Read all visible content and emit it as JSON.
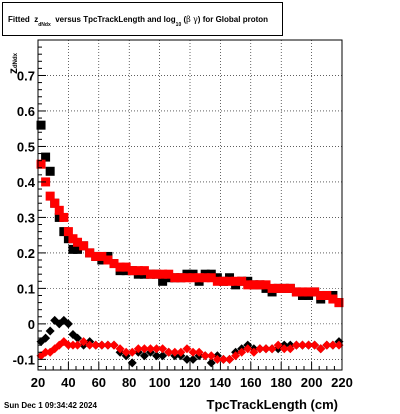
{
  "title": {
    "prefix": "Fitted",
    "z": "z",
    "z_sub": "dNdx",
    "middle": "versus TpcTrackLength and log",
    "log_sub": "10",
    "open": "(",
    "beta": "β",
    "gamma": "γ",
    "close": ")",
    "suffix": "for Global proton"
  },
  "footer": "Sun Dec  1 09:34:42 2024",
  "chart_data": {
    "type": "scatter",
    "title": "Fitted z_dNdx versus TpcTrackLength and log10(βγ) for Global proton",
    "xlabel": "TpcTrackLength (cm)",
    "ylabel": "z_dNdx",
    "xlim": [
      20,
      220
    ],
    "ylim": [
      -0.13,
      0.8
    ],
    "xticks": [
      20,
      40,
      60,
      80,
      100,
      120,
      140,
      160,
      180,
      200,
      220
    ],
    "yticks": [
      -0.1,
      0,
      0.1,
      0.2,
      0.3,
      0.4,
      0.5,
      0.6,
      0.7
    ],
    "grid": true,
    "series": [
      {
        "marker": "square",
        "color": "#000000",
        "x": [
          22,
          25,
          28,
          31,
          34,
          37,
          40,
          43,
          46,
          50,
          54,
          58,
          62,
          66,
          70,
          74,
          78,
          82,
          86,
          90,
          94,
          98,
          102,
          106,
          110,
          114,
          118,
          122,
          126,
          130,
          134,
          138,
          142,
          146,
          150,
          154,
          158,
          162,
          166,
          170,
          174,
          178,
          182,
          186,
          190,
          194,
          198,
          202,
          206,
          210,
          214,
          218
        ],
        "y": [
          0.56,
          0.47,
          0.43,
          0.34,
          0.3,
          0.26,
          0.24,
          0.21,
          0.21,
          0.22,
          0.2,
          0.19,
          0.18,
          0.19,
          0.17,
          0.15,
          0.15,
          0.15,
          0.14,
          0.14,
          0.14,
          0.14,
          0.12,
          0.13,
          0.13,
          0.13,
          0.14,
          0.14,
          0.12,
          0.14,
          0.14,
          0.13,
          0.12,
          0.13,
          0.11,
          0.12,
          0.12,
          0.11,
          0.11,
          0.1,
          0.09,
          0.1,
          0.1,
          0.1,
          0.09,
          0.08,
          0.08,
          0.09,
          0.07,
          0.08,
          0.08,
          0.06
        ]
      },
      {
        "marker": "square",
        "color": "#ff0000",
        "x": [
          22,
          25,
          28,
          31,
          34,
          37,
          40,
          43,
          46,
          50,
          54,
          58,
          62,
          66,
          70,
          74,
          78,
          82,
          86,
          90,
          94,
          98,
          102,
          106,
          110,
          114,
          118,
          122,
          126,
          130,
          134,
          138,
          142,
          146,
          150,
          154,
          158,
          162,
          166,
          170,
          174,
          178,
          182,
          186,
          190,
          194,
          198,
          202,
          206,
          210,
          214,
          218
        ],
        "y": [
          0.45,
          0.4,
          0.36,
          0.34,
          0.32,
          0.3,
          0.26,
          0.24,
          0.23,
          0.22,
          0.2,
          0.19,
          0.19,
          0.18,
          0.17,
          0.16,
          0.16,
          0.15,
          0.15,
          0.15,
          0.14,
          0.14,
          0.14,
          0.14,
          0.13,
          0.13,
          0.13,
          0.13,
          0.13,
          0.13,
          0.13,
          0.12,
          0.12,
          0.12,
          0.12,
          0.12,
          0.11,
          0.11,
          0.11,
          0.11,
          0.1,
          0.1,
          0.1,
          0.1,
          0.09,
          0.09,
          0.09,
          0.09,
          0.08,
          0.08,
          0.07,
          0.06
        ]
      },
      {
        "marker": "diamond",
        "color": "#000000",
        "x": [
          22,
          25,
          28,
          31,
          34,
          37,
          40,
          43,
          46,
          50,
          54,
          58,
          62,
          66,
          70,
          74,
          78,
          82,
          86,
          90,
          94,
          98,
          102,
          106,
          110,
          114,
          118,
          122,
          126,
          130,
          134,
          138,
          142,
          146,
          150,
          154,
          158,
          162,
          166,
          170,
          174,
          178,
          182,
          186,
          190,
          194,
          198,
          202,
          206,
          210,
          214,
          218
        ],
        "y": [
          -0.05,
          -0.04,
          -0.02,
          0.01,
          0.0,
          0.01,
          0.0,
          -0.03,
          -0.04,
          -0.06,
          -0.05,
          -0.06,
          -0.06,
          -0.06,
          -0.06,
          -0.08,
          -0.09,
          -0.11,
          -0.08,
          -0.09,
          -0.08,
          -0.09,
          -0.09,
          -0.08,
          -0.09,
          -0.09,
          -0.1,
          -0.1,
          -0.09,
          -0.09,
          -0.11,
          -0.09,
          -0.1,
          -0.1,
          -0.08,
          -0.07,
          -0.06,
          -0.07,
          -0.07,
          -0.07,
          -0.07,
          -0.07,
          -0.06,
          -0.06,
          -0.06,
          -0.06,
          -0.06,
          -0.06,
          -0.07,
          -0.06,
          -0.06,
          -0.05
        ]
      },
      {
        "marker": "diamond",
        "color": "#ff0000",
        "x": [
          22,
          25,
          28,
          31,
          34,
          37,
          40,
          43,
          46,
          50,
          54,
          58,
          62,
          66,
          70,
          74,
          78,
          82,
          86,
          90,
          94,
          98,
          102,
          106,
          110,
          114,
          118,
          122,
          126,
          130,
          134,
          138,
          142,
          146,
          150,
          154,
          158,
          162,
          166,
          170,
          174,
          178,
          182,
          186,
          190,
          194,
          198,
          202,
          206,
          210,
          214,
          218
        ],
        "y": [
          -0.09,
          -0.08,
          -0.08,
          -0.07,
          -0.06,
          -0.05,
          -0.06,
          -0.06,
          -0.06,
          -0.05,
          -0.06,
          -0.06,
          -0.06,
          -0.06,
          -0.06,
          -0.07,
          -0.08,
          -0.08,
          -0.07,
          -0.07,
          -0.07,
          -0.07,
          -0.07,
          -0.08,
          -0.08,
          -0.08,
          -0.07,
          -0.08,
          -0.08,
          -0.09,
          -0.09,
          -0.1,
          -0.1,
          -0.1,
          -0.09,
          -0.08,
          -0.07,
          -0.08,
          -0.07,
          -0.07,
          -0.07,
          -0.06,
          -0.07,
          -0.07,
          -0.06,
          -0.06,
          -0.06,
          -0.06,
          -0.07,
          -0.06,
          -0.06,
          -0.06
        ]
      }
    ]
  }
}
